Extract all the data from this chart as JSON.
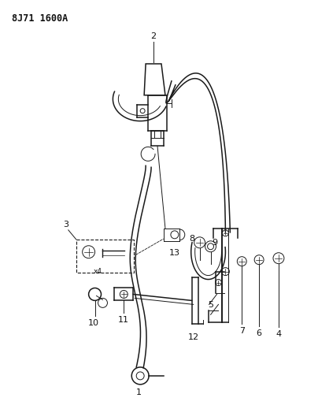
{
  "title_code": "8J71 1600A",
  "bg_color": "#ffffff",
  "line_color": "#1a1a1a",
  "label_color": "#111111",
  "fig_width": 4.04,
  "fig_height": 5.33,
  "dpi": 100
}
